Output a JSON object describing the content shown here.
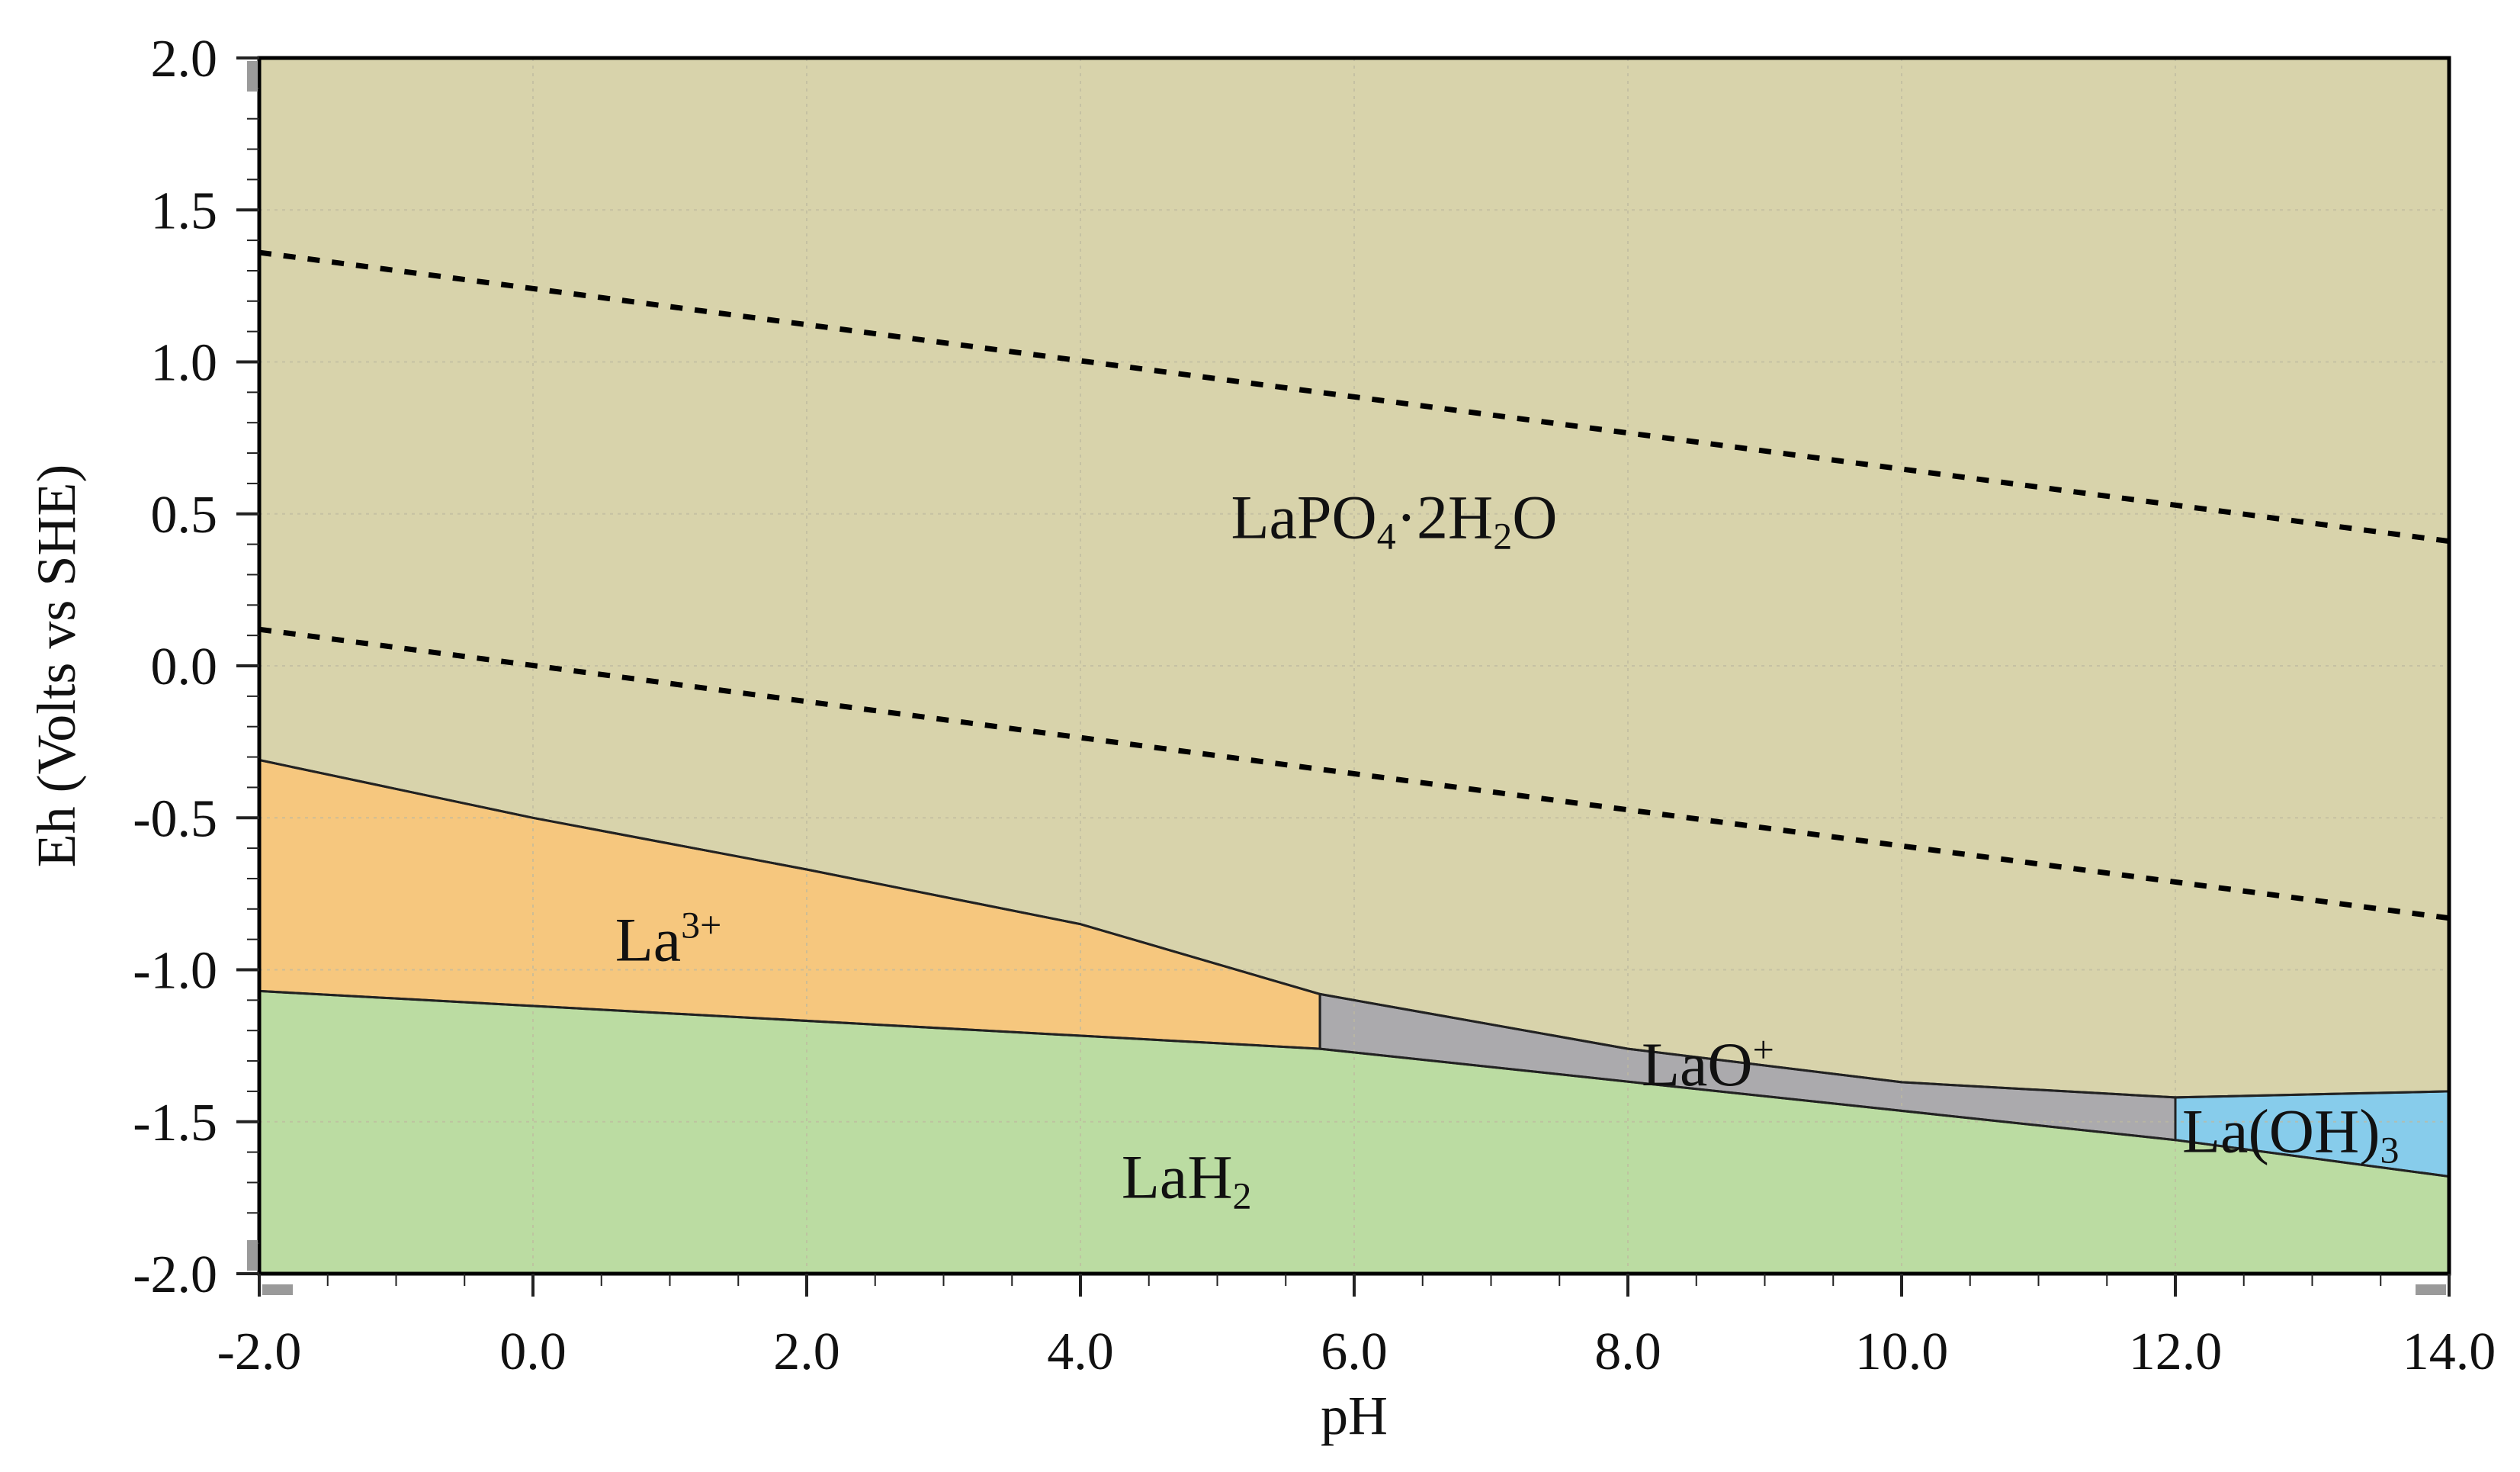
{
  "chart_data": {
    "type": "area",
    "xlabel": "pH",
    "ylabel": "Eh (Volts vs SHE)",
    "xlim": [
      -2,
      14
    ],
    "ylim": [
      -2,
      2
    ],
    "x_ticks": [
      "-2.0",
      "0.0",
      "2.0",
      "4.0",
      "6.0",
      "8.0",
      "10.0",
      "12.0",
      "14.0"
    ],
    "y_ticks": [
      "2.0",
      "1.5",
      "1.0",
      "0.5",
      "0.0",
      "-0.5",
      "-1.0",
      "-1.5",
      "-2.0"
    ],
    "grid": true,
    "colors": {
      "LaPO4·2H2O": "#d8d3ab",
      "La3+": "#f6c77e",
      "LaO+": "#abaaad",
      "La(OH)3": "#87cceb",
      "LaH2": "#bbdca2"
    },
    "regions": [
      {
        "name": "LaPO4·2H2O",
        "label_parts": [
          [
            "LaPO",
            ""
          ],
          [
            "4",
            "sub"
          ],
          [
            "·2H",
            ""
          ],
          [
            "2",
            "sub"
          ],
          [
            "O",
            ""
          ]
        ],
        "label_at": [
          5.1,
          0.42
        ],
        "polygon": [
          [
            -2,
            2
          ],
          [
            14,
            2
          ],
          [
            14,
            -1.4
          ],
          [
            12,
            -1.42
          ],
          [
            10,
            -1.37
          ],
          [
            8,
            -1.26
          ],
          [
            5.75,
            -1.08
          ],
          [
            4,
            -0.85
          ],
          [
            2,
            -0.67
          ],
          [
            0,
            -0.5
          ],
          [
            -2,
            -0.31
          ]
        ]
      },
      {
        "name": "La3+",
        "label_parts": [
          [
            "La",
            ""
          ],
          [
            "3+",
            "sup"
          ]
        ],
        "label_at": [
          0.6,
          -0.97
        ],
        "polygon": [
          [
            -2,
            -0.31
          ],
          [
            0,
            -0.5
          ],
          [
            2,
            -0.67
          ],
          [
            4,
            -0.85
          ],
          [
            5.75,
            -1.08
          ],
          [
            5.75,
            -1.26
          ],
          [
            -2,
            -1.07
          ]
        ]
      },
      {
        "name": "LaO+",
        "label_parts": [
          [
            "LaO",
            ""
          ],
          [
            "+",
            "sup"
          ]
        ],
        "label_at": [
          8.1,
          -1.38
        ],
        "polygon": [
          [
            5.75,
            -1.08
          ],
          [
            8,
            -1.26
          ],
          [
            10,
            -1.37
          ],
          [
            12,
            -1.42
          ],
          [
            12,
            -1.56
          ],
          [
            5.75,
            -1.26
          ]
        ]
      },
      {
        "name": "La(OH)3",
        "label_parts": [
          [
            "La(OH)",
            ""
          ],
          [
            "3",
            "sub"
          ]
        ],
        "label_at": [
          12.05,
          -1.6
        ],
        "polygon": [
          [
            12,
            -1.42
          ],
          [
            14,
            -1.4
          ],
          [
            14,
            -1.68
          ],
          [
            12,
            -1.56
          ]
        ]
      },
      {
        "name": "LaH2",
        "label_parts": [
          [
            "LaH",
            ""
          ],
          [
            "2",
            "sub"
          ]
        ],
        "label_at": [
          4.3,
          -1.75
        ],
        "polygon": [
          [
            -2,
            -1.07
          ],
          [
            5.75,
            -1.26
          ],
          [
            12,
            -1.56
          ],
          [
            14,
            -1.68
          ],
          [
            14,
            -2
          ],
          [
            -2,
            -2
          ]
        ]
      }
    ],
    "dashed_lines": [
      {
        "name": "water-oxidation",
        "points": [
          [
            -2,
            1.36
          ],
          [
            14,
            0.41
          ]
        ]
      },
      {
        "name": "water-reduction",
        "points": [
          [
            -2,
            0.12
          ],
          [
            14,
            -0.83
          ]
        ]
      }
    ]
  }
}
